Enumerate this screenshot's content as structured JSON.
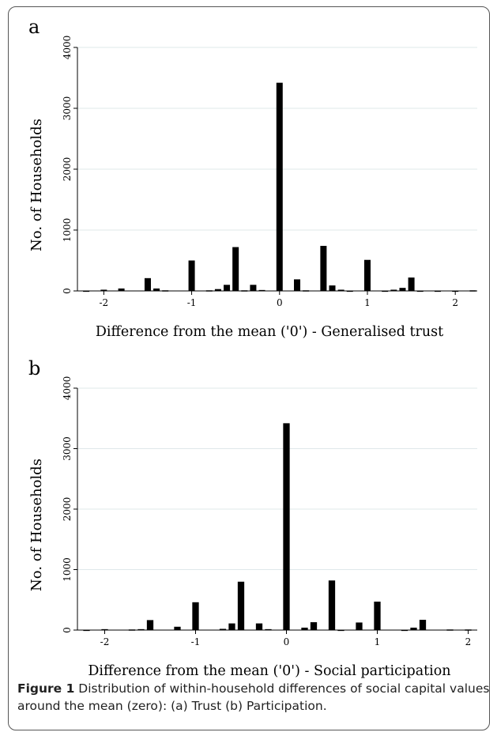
{
  "panels": [
    {
      "letter": "a"
    },
    {
      "letter": "b"
    }
  ],
  "caption": {
    "label": "Figure 1",
    "text": " Distribution of within-household differences of social capital values around the mean (zero): (a) Trust (b) Participation."
  },
  "chart_data": [
    {
      "type": "bar",
      "title": "",
      "xlabel": "Difference from the mean ('0') - Generalised trust",
      "ylabel": "No. of Households",
      "xlim": [
        -2.3,
        2.25
      ],
      "ylim": [
        0,
        4000
      ],
      "xticks": [
        -2,
        -1,
        0,
        1,
        2
      ],
      "yticks": [
        0,
        1000,
        2000,
        3000,
        4000
      ],
      "grid": "horizontal",
      "bar_width": 0.1,
      "x": [
        -2.2,
        -2.0,
        -1.8,
        -1.5,
        -1.4,
        -1.3,
        -1.0,
        -0.8,
        -0.7,
        -0.6,
        -0.5,
        -0.4,
        -0.3,
        -0.2,
        0.0,
        0.2,
        0.3,
        0.5,
        0.6,
        0.7,
        0.8,
        1.0,
        1.2,
        1.3,
        1.4,
        1.5,
        1.6,
        1.8,
        2.0,
        2.2
      ],
      "values": [
        5,
        20,
        40,
        210,
        40,
        10,
        500,
        10,
        30,
        100,
        720,
        10,
        100,
        15,
        3420,
        190,
        10,
        740,
        90,
        20,
        5,
        510,
        5,
        20,
        50,
        220,
        5,
        5,
        5,
        10
      ]
    },
    {
      "type": "bar",
      "title": "",
      "xlabel": "Difference from the mean ('0') - Social participation",
      "ylabel": "No. of Households",
      "xlim": [
        -2.3,
        2.1
      ],
      "ylim": [
        0,
        4000
      ],
      "xticks": [
        -2,
        -1,
        0,
        1,
        2
      ],
      "yticks": [
        0,
        1000,
        2000,
        3000,
        4000
      ],
      "grid": "horizontal",
      "bar_width": 0.1,
      "x": [
        -2.2,
        -2.0,
        -1.7,
        -1.6,
        -1.5,
        -1.2,
        -1.0,
        -0.7,
        -0.6,
        -0.5,
        -0.3,
        -0.2,
        0.0,
        0.2,
        0.3,
        0.5,
        0.6,
        0.8,
        1.0,
        1.3,
        1.4,
        1.5,
        1.8,
        2.0
      ],
      "values": [
        5,
        15,
        10,
        15,
        165,
        55,
        460,
        20,
        110,
        800,
        110,
        15,
        3420,
        40,
        130,
        820,
        5,
        125,
        470,
        5,
        40,
        170,
        10,
        10
      ]
    }
  ]
}
